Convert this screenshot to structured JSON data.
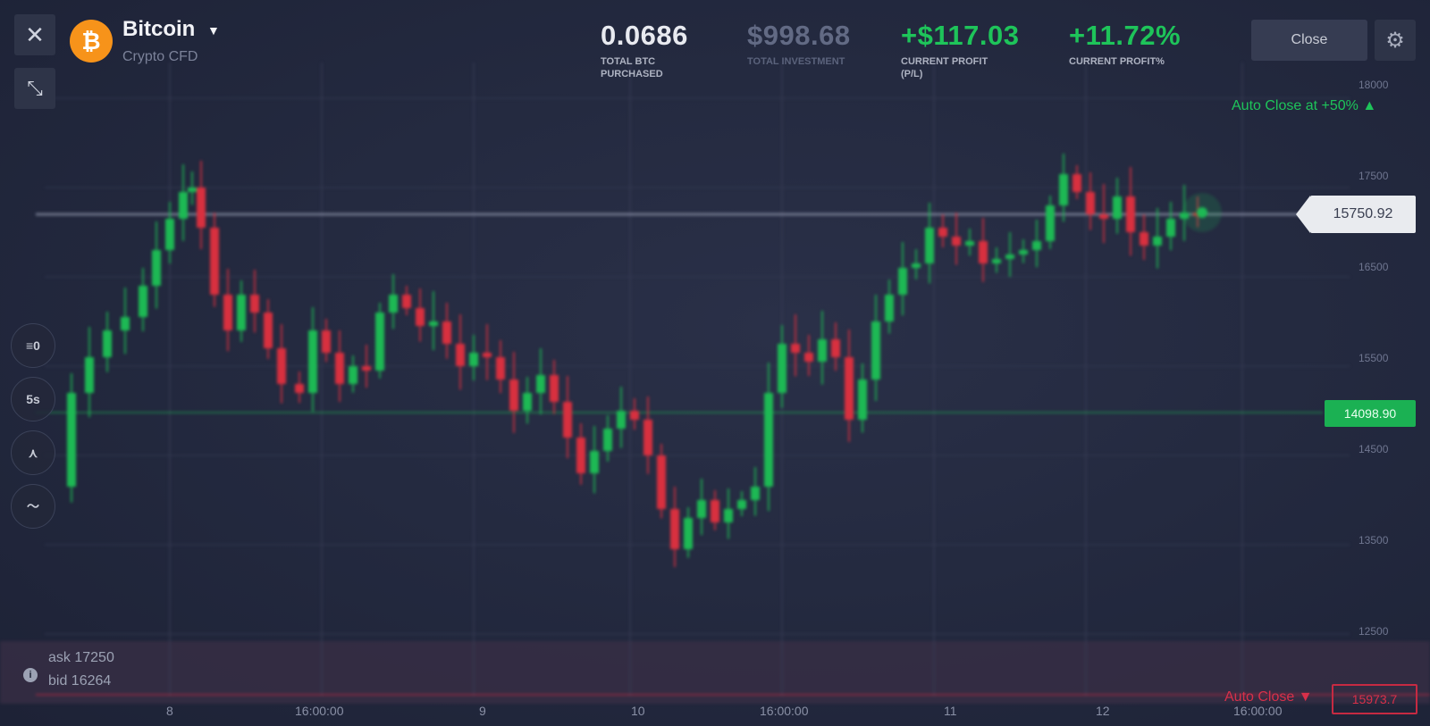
{
  "asset": {
    "name": "Bitcoin",
    "subtitle": "Crypto CFD",
    "logo_glyph": "₿"
  },
  "stats": [
    {
      "value": "0.0686",
      "label1": "TOTAL BTC",
      "label2": "PURCHASED",
      "color": "#e8eaf0"
    },
    {
      "value": "$998.68",
      "label1": "TOTAL INVESTMENT",
      "label2": "",
      "color": "#626a84"
    },
    {
      "value": "+$117.03",
      "label1": "CURRENT PROFIT",
      "label2": "(P/L)",
      "color": "#1ec45a"
    },
    {
      "value": "+11.72%",
      "label1": "CURRENT PROFIT%",
      "label2": "",
      "color": "#1ec45a"
    }
  ],
  "toolbar": {
    "close_label": "Close",
    "close_icon": "close-icon",
    "expand_icon": "expand-icon",
    "settings_icon": "gear-icon"
  },
  "tools": [
    {
      "name": "indicators-tool",
      "glyph": "≡0"
    },
    {
      "name": "timeframe-tool",
      "glyph": "5s"
    },
    {
      "name": "drawing-tool",
      "glyph": "⋏"
    },
    {
      "name": "chart-type-tool",
      "glyph": "〜"
    }
  ],
  "price": {
    "current": "15750.92",
    "entry": "14098.90"
  },
  "auto_close": {
    "take_profit": "Auto Close at +50% ▲",
    "stop_loss": "Auto Close ▼",
    "stop_loss_value": "15973.7"
  },
  "quotes": {
    "ask": "ask 17250",
    "bid": "bid 16264"
  },
  "y_axis": [
    "18000",
    "17500",
    "16500",
    "15500",
    "14500",
    "13500",
    "12500"
  ],
  "x_axis": [
    "8",
    "16:00:00",
    "9",
    "10",
    "16:00:00",
    "11",
    "12",
    "16:00:00"
  ],
  "colors": {
    "up": "#1db954",
    "down": "#d8303f",
    "bg": "#232840"
  }
}
